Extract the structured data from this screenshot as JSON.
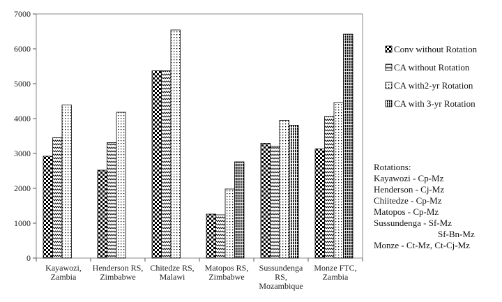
{
  "chart_data": {
    "type": "bar",
    "categories": [
      [
        "Kayawozi,",
        "Zambia"
      ],
      [
        "Henderson RS,",
        "Zimbabwe"
      ],
      [
        "Chitedze RS,",
        "Malawi"
      ],
      [
        "Matopos RS,",
        "Zimbabwe"
      ],
      [
        "Sussundenga",
        "RS,",
        "Mozambique"
      ],
      [
        "Monze FTC,",
        "Zambia"
      ]
    ],
    "series": [
      {
        "name": "Conv without Rotation",
        "values": [
          2920,
          2520,
          5370,
          1260,
          3290,
          3130
        ]
      },
      {
        "name": "CA without Rotation",
        "values": [
          3450,
          3310,
          5370,
          1240,
          3200,
          4060
        ]
      },
      {
        "name": "CA with2-yr Rotation",
        "values": [
          4390,
          4180,
          6540,
          1980,
          3950,
          4460
        ]
      },
      {
        "name": "CA with 3-yr Rotation",
        "values": [
          null,
          null,
          null,
          2760,
          3810,
          6420
        ]
      }
    ],
    "y_ticks": [
      "0",
      "1000",
      "2000",
      "3000",
      "4000",
      "5000",
      "6000",
      "7000"
    ],
    "ylim": [
      0,
      7000
    ],
    "title": "",
    "xlabel": "",
    "ylabel": "",
    "grid": false,
    "legend_position": "right"
  },
  "rotations_note": {
    "heading": "Rotations:",
    "lines": [
      "Kayawozi - Cp-Mz",
      "Henderson -  Cj-Mz",
      "Chiitedze  - Cp-Mz",
      "Matopos - Cp-Mz",
      "Sussundenga - Sf-Mz",
      "Sf-Bn-Mz",
      "Monze - Ct-Mz, Ct-Cj-Mz"
    ]
  }
}
